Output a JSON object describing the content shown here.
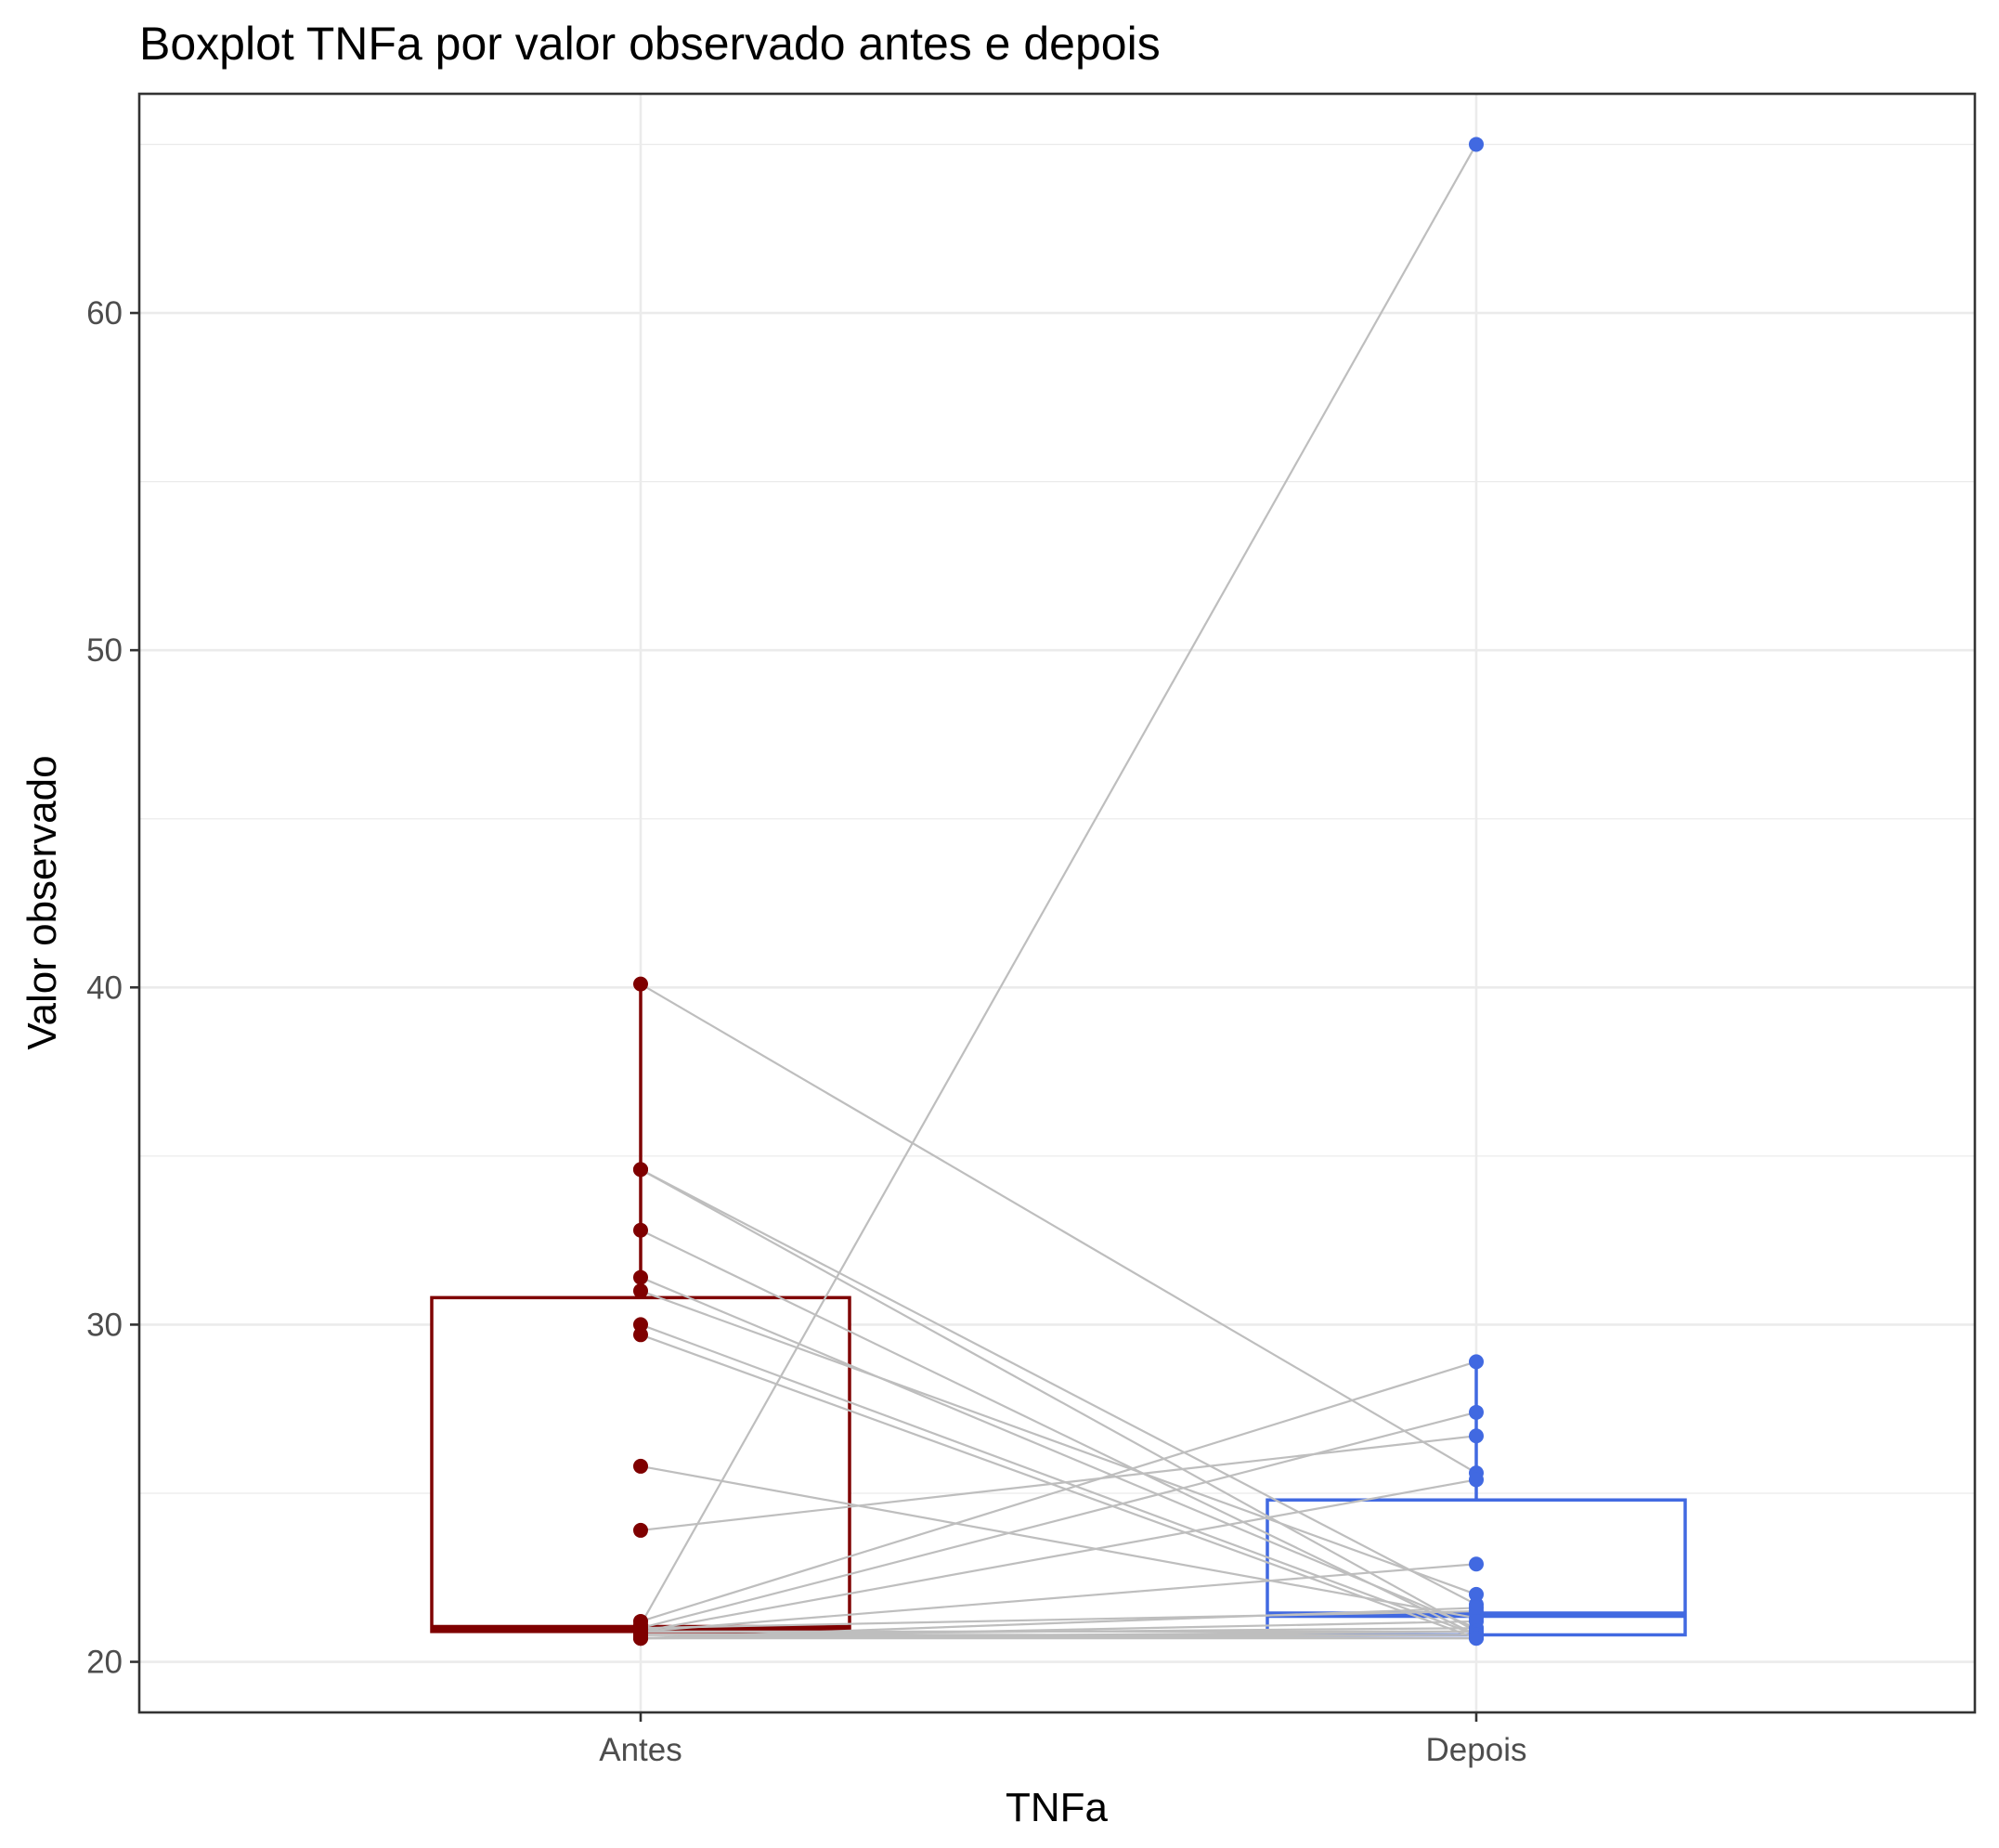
{
  "chart_data": {
    "type": "boxplot",
    "title": "Boxplot TNFa por valor observado antes e depois",
    "xlabel": "TNFa",
    "ylabel": "Valor observado",
    "categories": [
      "Antes",
      "Depois"
    ],
    "ylim": [
      18.5,
      66.5
    ],
    "yticks": [
      20,
      30,
      40,
      50,
      60
    ],
    "grid": true,
    "legend": "none",
    "series": [
      {
        "category": "Antes",
        "color": "#7f0000",
        "box": {
          "q1": 20.9,
          "median": 21.0,
          "q3": 30.8,
          "whisker_low": 20.7,
          "whisker_high": 40.1
        },
        "points": [
          40.1,
          34.6,
          34.6,
          32.8,
          31.4,
          31.0,
          30.0,
          29.7,
          25.8,
          23.9,
          21.2,
          21.1,
          21.0,
          21.0,
          20.9,
          20.9,
          20.9,
          20.8,
          20.8,
          20.8,
          20.8,
          20.7,
          20.7,
          20.7,
          20.7,
          20.7
        ]
      },
      {
        "category": "Depois",
        "color": "#4169e1",
        "box": {
          "q1": 20.8,
          "median": 21.4,
          "q3": 24.8,
          "whisker_low": 20.7,
          "whisker_high": 28.9
        },
        "points": [
          25.6,
          20.9,
          21.7,
          20.8,
          21.0,
          22.0,
          20.8,
          20.7,
          21.3,
          26.7,
          28.9,
          65.0,
          21.5,
          27.4,
          22.9,
          25.4,
          20.9,
          21.0,
          20.8,
          20.7,
          20.8,
          21.6,
          21.2,
          20.9,
          20.8,
          20.7
        ]
      }
    ]
  }
}
